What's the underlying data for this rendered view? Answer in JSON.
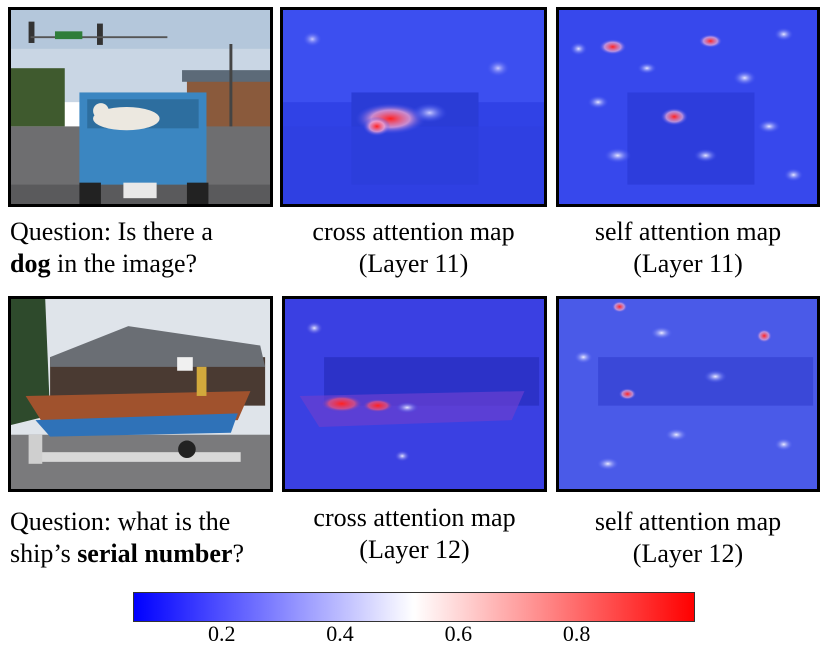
{
  "rows": [
    {
      "question_parts": [
        {
          "text": "Question: Is there a",
          "bold": false,
          "break_after": true
        },
        {
          "text": "dog",
          "bold": true,
          "break_after": false
        },
        {
          "text": " in the image?",
          "bold": false,
          "break_after": false
        }
      ],
      "maps": [
        {
          "caption_line1": "cross attention map",
          "caption_line2": "(Layer 11)"
        },
        {
          "caption_line1": "self attention map",
          "caption_line2": "(Layer 11)"
        }
      ]
    },
    {
      "question_parts": [
        {
          "text": "Question: what is the",
          "bold": false,
          "break_after": true
        },
        {
          "text": "ship’s ",
          "bold": false,
          "break_after": false
        },
        {
          "text": "serial number",
          "bold": true,
          "break_after": false
        },
        {
          "text": "?",
          "bold": false,
          "break_after": false
        }
      ],
      "maps": [
        {
          "caption_line1": "cross attention map",
          "caption_line2": "(Layer 12)"
        },
        {
          "caption_line1": "self attention map",
          "caption_line2": "(Layer 12)"
        }
      ]
    }
  ],
  "colorbar": {
    "ticks": [
      "0.2",
      "0.4",
      "0.6",
      "0.8"
    ],
    "tick_values": [
      0.2,
      0.4,
      0.6,
      0.8
    ],
    "range": [
      0.05,
      1.0
    ],
    "colors": {
      "low": "#0000ff",
      "mid": "#ffffff",
      "high": "#ff0000"
    }
  }
}
